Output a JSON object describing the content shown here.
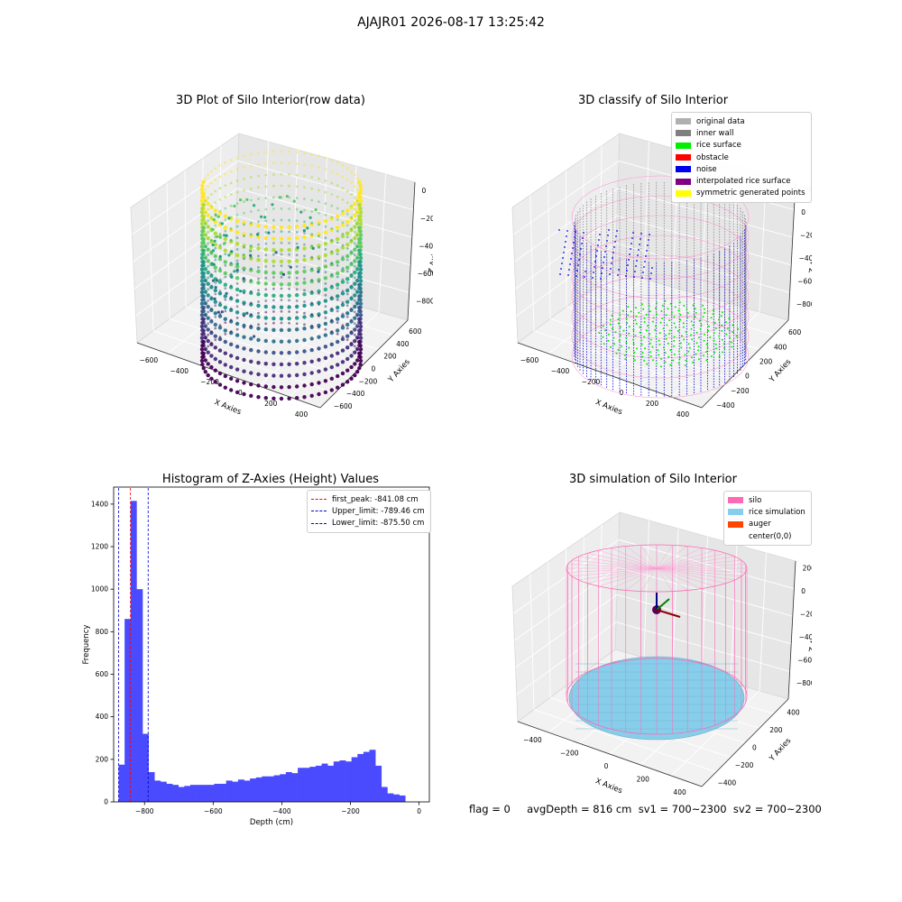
{
  "suptitle": "AJAJR01 2026-08-17 13:25:42",
  "panels": {
    "raw": {
      "title": "3D Plot of Silo Interior(row data)",
      "xlabel": "X Axies",
      "ylabel": "Y Axies",
      "zlabel": "Z Axies (Depth)",
      "xticks": [
        "−600",
        "−400",
        "−200",
        "0",
        "200",
        "400"
      ],
      "yticks": [
        "600",
        "400",
        "200",
        "0",
        "−200",
        "−400",
        "−600"
      ],
      "zticks": [
        "0",
        "−200",
        "−400",
        "−600",
        "−800"
      ]
    },
    "classify": {
      "title": "3D classify of Silo Interior",
      "xlabel": "X Axies",
      "ylabel": "Y Axies",
      "zlabel": "Z Axies (Depth)",
      "xticks": [
        "−600",
        "−400",
        "−200",
        "0",
        "200",
        "400"
      ],
      "yticks": [
        "600",
        "400",
        "200",
        "0",
        "−200",
        "−400"
      ],
      "zticks": [
        "200",
        "0",
        "−200",
        "−400",
        "−600",
        "−800"
      ],
      "legend": [
        {
          "label": "original data",
          "color": "#b0b0b0"
        },
        {
          "label": "inner wall",
          "color": "#808080"
        },
        {
          "label": "rice surface",
          "color": "#00ee00"
        },
        {
          "label": "obstacle",
          "color": "#ff0000"
        },
        {
          "label": "noise",
          "color": "#0000ee"
        },
        {
          "label": "interpolated rice surface",
          "color": "#800080"
        },
        {
          "label": "symmetric generated points",
          "color": "#ffff00"
        }
      ]
    },
    "simulation": {
      "title": "3D simulation of Silo Interior",
      "xlabel": "X Axies",
      "ylabel": "Y Axies",
      "zlabel": "Z Axies (Depth)",
      "xticks": [
        "−400",
        "−200",
        "0",
        "200",
        "400"
      ],
      "yticks": [
        "400",
        "200",
        "0",
        "−200",
        "−400"
      ],
      "zticks": [
        "200",
        "0",
        "−200",
        "−400",
        "−600",
        "−800"
      ],
      "legend": [
        {
          "label": "silo",
          "color": "#ff69b4"
        },
        {
          "label": "rice simulation",
          "color": "#87ceeb"
        },
        {
          "label": "auger",
          "color": "#ff4500"
        },
        {
          "label": "center(0,0)",
          "color": ""
        }
      ]
    }
  },
  "footer": "flag = 0     avgDepth = 816 cm  sv1 = 700~2300  sv2 = 700~2300",
  "chart_data": [
    {
      "type": "bar",
      "title": "Histogram of Z-Axies (Height) Values",
      "xlabel": "Depth (cm)",
      "ylabel": "Frequency",
      "xlim": [
        -890,
        30
      ],
      "ylim": [
        0,
        1480
      ],
      "xticks": [
        -800,
        -600,
        -400,
        -200,
        0
      ],
      "yticks": [
        0,
        200,
        400,
        600,
        800,
        1000,
        1200,
        1400
      ],
      "bin_width": 17.4,
      "bin_start": -875.5,
      "color": "#4a4aff",
      "values": [
        175,
        860,
        1415,
        1000,
        320,
        140,
        100,
        95,
        85,
        80,
        70,
        75,
        80,
        80,
        80,
        80,
        85,
        85,
        100,
        95,
        105,
        100,
        110,
        115,
        120,
        120,
        125,
        130,
        140,
        135,
        160,
        160,
        165,
        170,
        180,
        170,
        190,
        195,
        190,
        210,
        225,
        235,
        245,
        170,
        70,
        40,
        35,
        30
      ],
      "vlines": [
        {
          "label": "first_peak: -841.08 cm",
          "x": -841.08,
          "color": "#ff0000"
        },
        {
          "label": "Upper_limit: -789.46 cm",
          "x": -789.46,
          "color": "#0000cc"
        },
        {
          "label": "Lower_limit: -875.50 cm",
          "x": -875.5,
          "color": "#0000cc"
        }
      ],
      "legend_position": "top-right"
    }
  ]
}
